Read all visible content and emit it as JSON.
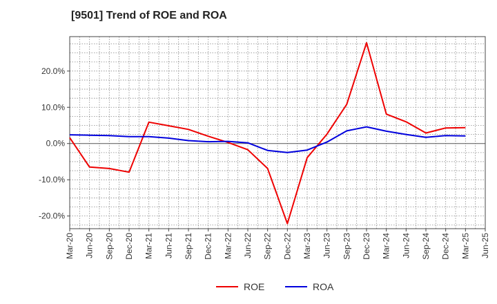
{
  "chart_data": {
    "type": "line",
    "title": "[9501]  Trend of ROE and ROA",
    "xlabel": "",
    "ylabel": "",
    "x": [
      "Mar-20",
      "Jun-20",
      "Sep-20",
      "Dec-20",
      "Mar-21",
      "Jun-21",
      "Sep-21",
      "Dec-21",
      "Mar-22",
      "Jun-22",
      "Sep-22",
      "Dec-22",
      "Mar-23",
      "Jun-23",
      "Sep-23",
      "Dec-23",
      "Mar-24",
      "Jun-24",
      "Sep-24",
      "Dec-24",
      "Mar-25",
      "Jun-25"
    ],
    "ylim": [
      -23.5,
      29.5
    ],
    "yticks": [
      -20,
      -10,
      0,
      10,
      20
    ],
    "ytick_labels": [
      "-20.0%",
      "-10.0%",
      "0.0%",
      "10.0%",
      "20.0%"
    ],
    "grid": true,
    "legend_position": "bottom",
    "series": [
      {
        "name": "ROE",
        "color": "#ee0000",
        "values": [
          1.6,
          -6.5,
          -6.9,
          -7.9,
          5.9,
          4.9,
          3.9,
          2.0,
          0.3,
          -1.7,
          -6.9,
          -22.1,
          -3.9,
          2.6,
          10.8,
          27.8,
          8.1,
          6.0,
          2.9,
          4.3,
          4.4,
          null
        ]
      },
      {
        "name": "ROA",
        "color": "#0000dd",
        "values": [
          2.4,
          2.3,
          2.2,
          1.9,
          1.9,
          1.5,
          0.8,
          0.5,
          0.6,
          0.2,
          -1.9,
          -2.5,
          -1.8,
          0.4,
          3.5,
          4.6,
          3.4,
          2.5,
          1.7,
          2.2,
          2.1,
          null
        ]
      }
    ]
  }
}
